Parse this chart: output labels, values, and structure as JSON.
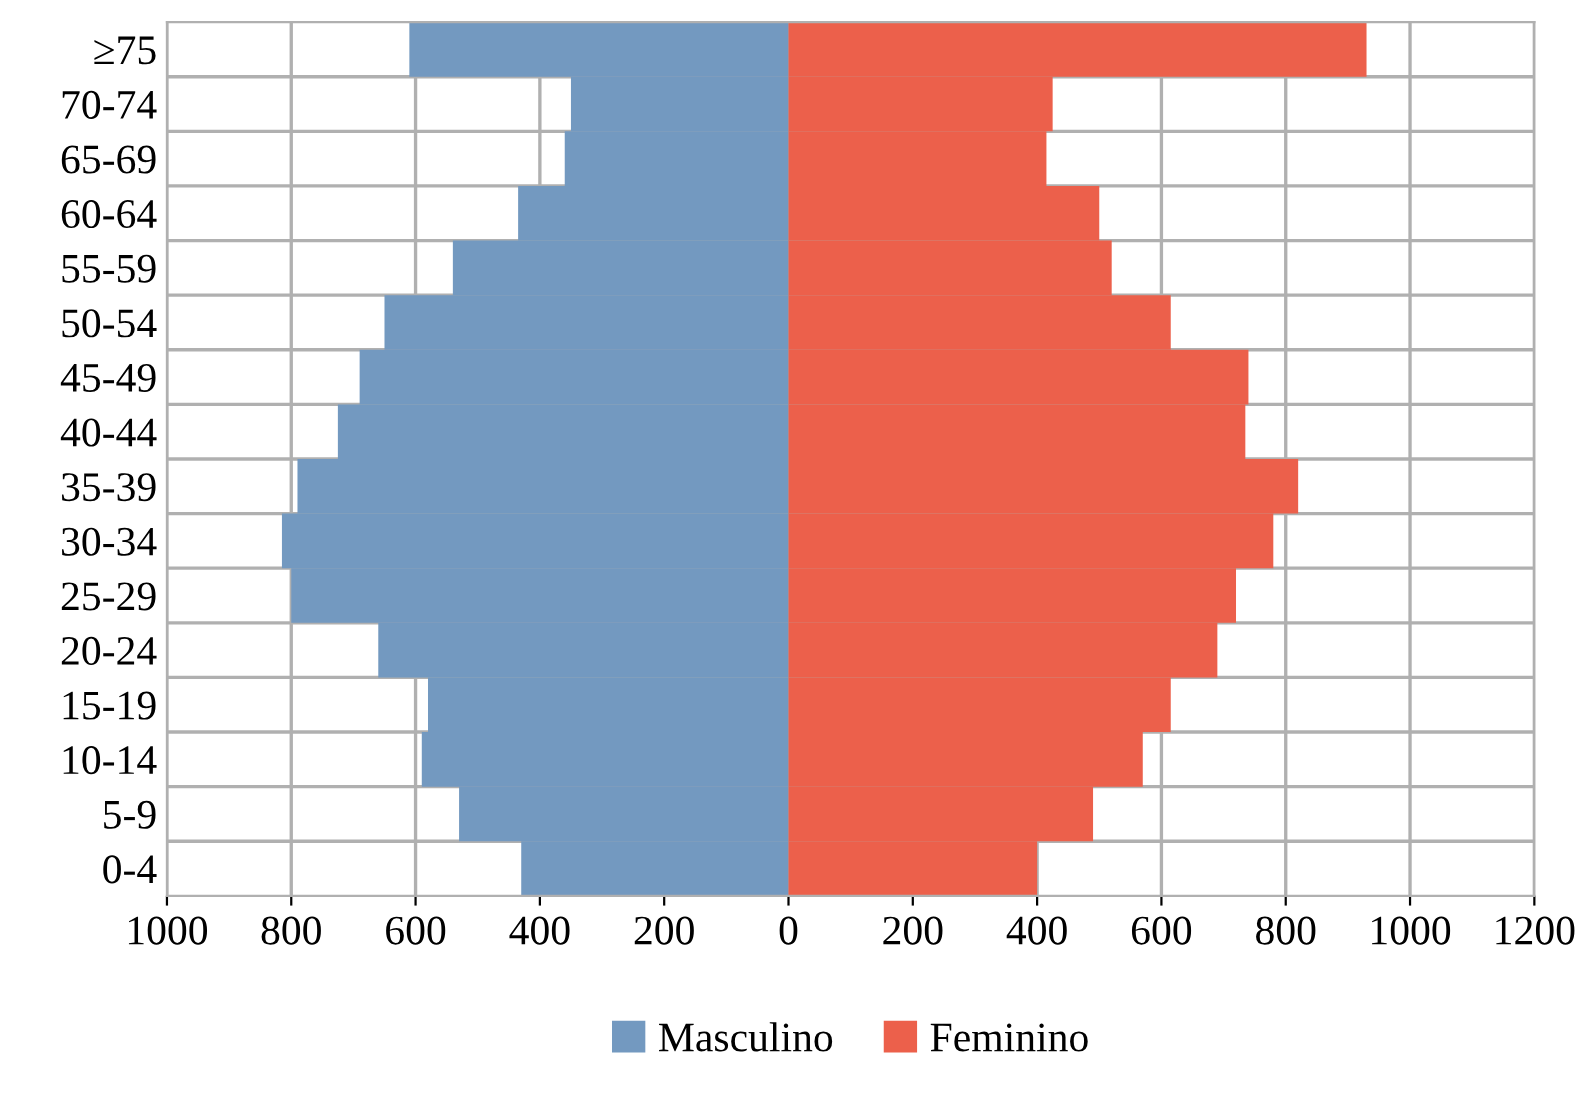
{
  "chart_data": {
    "type": "bar",
    "orientation": "horizontal",
    "categories": [
      "≥75",
      "70-74",
      "65-69",
      "60-64",
      "55-59",
      "50-54",
      "45-49",
      "40-44",
      "35-39",
      "30-34",
      "25-29",
      "20-24",
      "15-19",
      "10-14",
      "5-9",
      "0-4"
    ],
    "series": [
      {
        "name": "Masculino",
        "color": "#7399c0",
        "values": [
          -610,
          -350,
          -360,
          -435,
          -540,
          -650,
          -690,
          -725,
          -790,
          -815,
          -800,
          -660,
          -580,
          -590,
          -530,
          -430
        ]
      },
      {
        "name": "Feminino",
        "color": "#ec604b",
        "values": [
          930,
          425,
          415,
          500,
          520,
          615,
          740,
          735,
          820,
          780,
          720,
          690,
          615,
          570,
          490,
          400
        ]
      }
    ],
    "xlim": [
      -1000,
      1200
    ],
    "xticks": [
      {
        "value": -1000,
        "label": "1000"
      },
      {
        "value": -800,
        "label": "800"
      },
      {
        "value": -600,
        "label": "600"
      },
      {
        "value": -400,
        "label": "400"
      },
      {
        "value": -200,
        "label": "200"
      },
      0,
      200,
      400,
      600,
      800,
      1000,
      1200
    ],
    "grid": true,
    "legend": "bottom",
    "stacked": true
  }
}
